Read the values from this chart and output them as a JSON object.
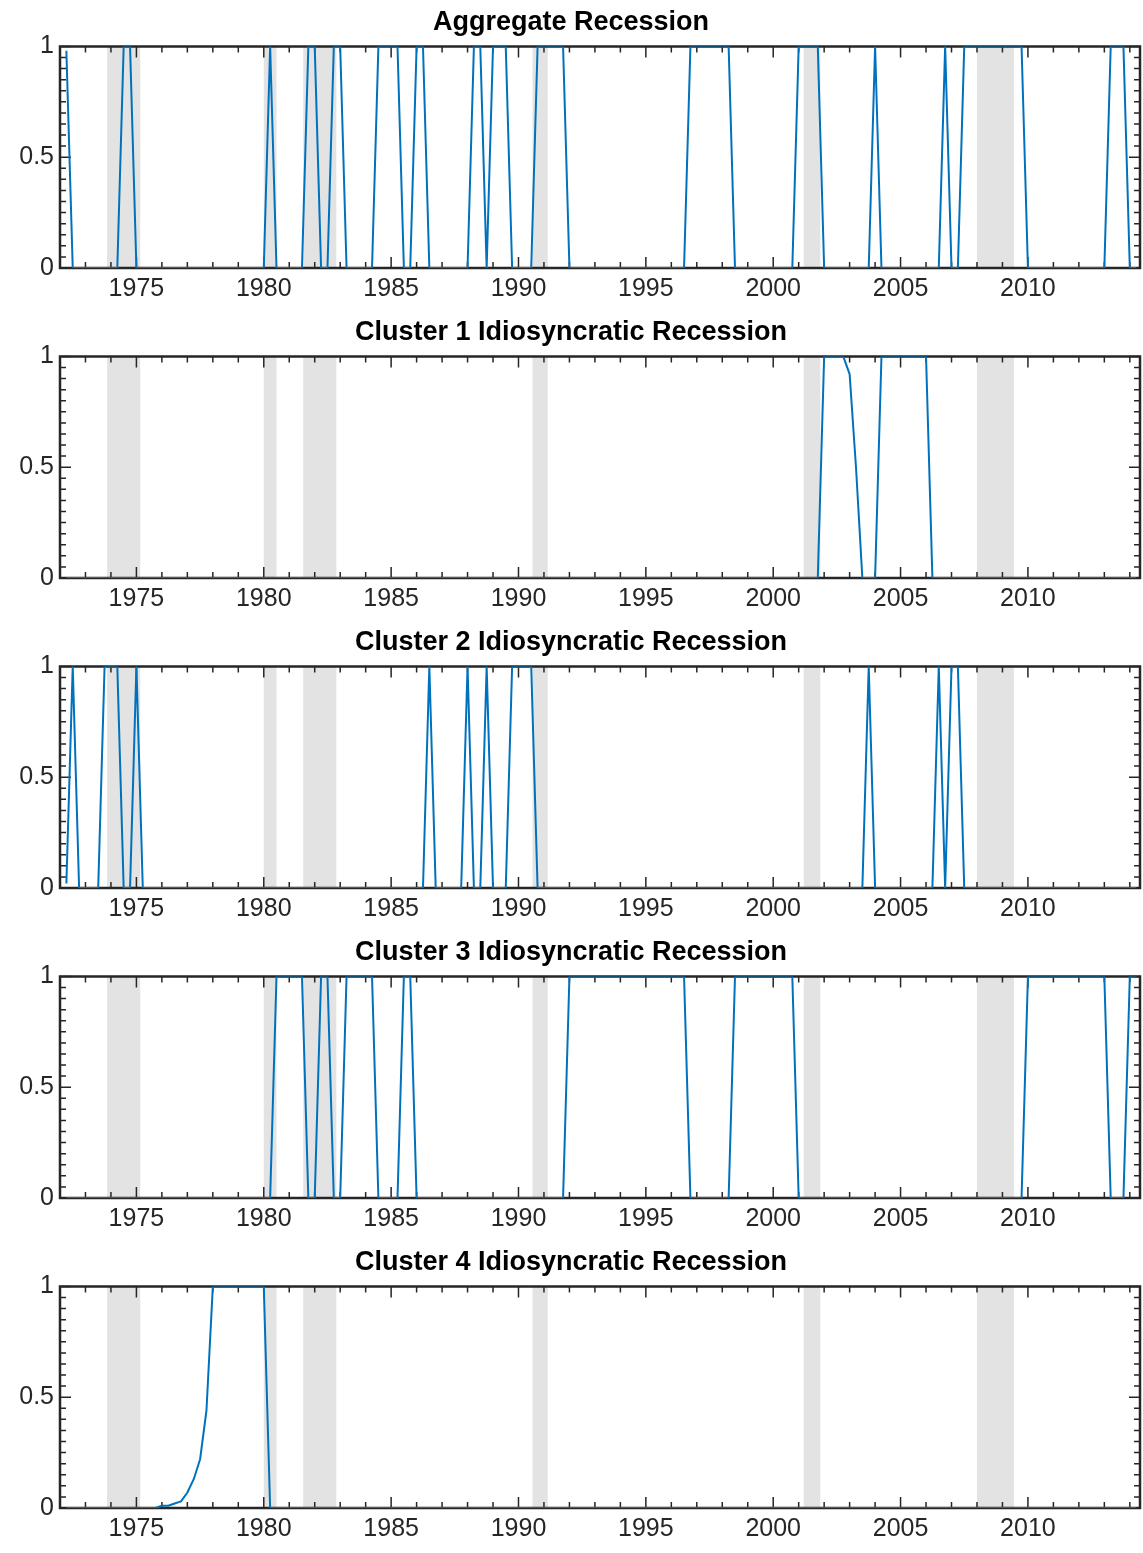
{
  "chart_data": [
    {
      "type": "line",
      "title": "Aggregate Recession",
      "marker": "none",
      "xlim": [
        1972,
        2014.4
      ],
      "ylim": [
        0,
        1
      ],
      "xticks": [
        {
          "value": 1972,
          "label": null
        },
        {
          "value": 1973,
          "label": null
        },
        {
          "value": 1974,
          "label": null
        },
        1975,
        {
          "value": 1976,
          "label": null
        },
        {
          "value": 1977,
          "label": null
        },
        {
          "value": 1978,
          "label": null
        },
        {
          "value": 1979,
          "label": null
        },
        1980,
        {
          "value": 1981,
          "label": null
        },
        {
          "value": 1982,
          "label": null
        },
        {
          "value": 1983,
          "label": null
        },
        {
          "value": 1984,
          "label": null
        },
        1985,
        {
          "value": 1986,
          "label": null
        },
        {
          "value": 1987,
          "label": null
        },
        {
          "value": 1988,
          "label": null
        },
        {
          "value": 1989,
          "label": null
        },
        1990,
        {
          "value": 1991,
          "label": null
        },
        {
          "value": 1992,
          "label": null
        },
        {
          "value": 1993,
          "label": null
        },
        {
          "value": 1994,
          "label": null
        },
        1995,
        {
          "value": 1996,
          "label": null
        },
        {
          "value": 1997,
          "label": null
        },
        {
          "value": 1998,
          "label": null
        },
        {
          "value": 1999,
          "label": null
        },
        2000,
        {
          "value": 2001,
          "label": null
        },
        {
          "value": 2002,
          "label": null
        },
        {
          "value": 2003,
          "label": null
        },
        {
          "value": 2004,
          "label": null
        },
        2005,
        {
          "value": 2006,
          "label": null
        },
        {
          "value": 2007,
          "label": null
        },
        {
          "value": 2008,
          "label": null
        },
        {
          "value": 2009,
          "label": null
        },
        2010,
        {
          "value": 2011,
          "label": null
        },
        {
          "value": 2012,
          "label": null
        },
        {
          "value": 2013,
          "label": null
        },
        {
          "value": 2014,
          "label": null
        }
      ],
      "yticks": [
        0,
        {
          "value": 0.05,
          "label": null
        },
        {
          "value": 0.1,
          "label": null
        },
        {
          "value": 0.15,
          "label": null
        },
        {
          "value": 0.2,
          "label": null
        },
        {
          "value": 0.25,
          "label": null
        },
        {
          "value": 0.3,
          "label": null
        },
        {
          "value": 0.35,
          "label": null
        },
        {
          "value": 0.4,
          "label": null
        },
        {
          "value": 0.45,
          "label": null
        },
        0.5,
        {
          "value": 0.55,
          "label": null
        },
        {
          "value": 0.6,
          "label": null
        },
        {
          "value": 0.65,
          "label": null
        },
        {
          "value": 0.7,
          "label": null
        },
        {
          "value": 0.75,
          "label": null
        },
        {
          "value": 0.8,
          "label": null
        },
        {
          "value": 0.85,
          "label": null
        },
        {
          "value": 0.9,
          "label": null
        },
        {
          "value": 0.95,
          "label": null
        },
        1
      ],
      "bands": [
        {
          "axis": "x",
          "from": 1973.85,
          "to": 1975.15,
          "color": "#e3e3e3"
        },
        {
          "axis": "x",
          "from": 1980.0,
          "to": 1980.5,
          "color": "#e3e3e3"
        },
        {
          "axis": "x",
          "from": 1981.55,
          "to": 1982.85,
          "color": "#e3e3e3"
        },
        {
          "axis": "x",
          "from": 1990.55,
          "to": 1991.15,
          "color": "#e3e3e3"
        },
        {
          "axis": "x",
          "from": 2001.2,
          "to": 2001.85,
          "color": "#e3e3e3"
        },
        {
          "axis": "x",
          "from": 2008.0,
          "to": 2009.45,
          "color": "#e3e3e3"
        }
      ],
      "series": [
        {
          "color": "#0072bd",
          "x": [
            1972.25,
            1972.5,
            1974.25,
            1974.5,
            1974.75,
            1975.0,
            1980.0,
            1980.25,
            1980.5,
            1981.5,
            1981.75,
            1982.0,
            1982.25,
            1982.5,
            1982.75,
            1983.0,
            1983.25,
            1984.25,
            1984.5,
            1985.25,
            1985.5,
            1985.75,
            1986.0,
            1986.25,
            1986.5,
            1988.0,
            1988.25,
            1988.5,
            1988.75,
            1989.0,
            1989.5,
            1989.75,
            1990.5,
            1990.75,
            1991.75,
            1992.0,
            1996.5,
            1996.75,
            1998.25,
            1998.5,
            2000.75,
            2001.0,
            2001.75,
            2002.0,
            2003.75,
            2004.0,
            2004.25,
            2006.5,
            2006.75,
            2007.0,
            2007.25,
            2007.5,
            2009.75,
            2010.0,
            2013.0,
            2013.25,
            2013.75,
            2014.0,
            2014.25
          ],
          "values": [
            0.98,
            0,
            0,
            1,
            1,
            0,
            0,
            1,
            0,
            0,
            1,
            1,
            0,
            0,
            1,
            1,
            0,
            0,
            1,
            1,
            0,
            0,
            1,
            1,
            0,
            0,
            1,
            1,
            0,
            1,
            1,
            0,
            0,
            1,
            1,
            0,
            0,
            1,
            1,
            0,
            0,
            1,
            1,
            0,
            0,
            1,
            0,
            0,
            1,
            0,
            0,
            1,
            1,
            0,
            0,
            1,
            1,
            0,
            0
          ]
        }
      ]
    },
    {
      "type": "line",
      "title": "Cluster 1 Idiosyncratic Recession",
      "marker": "none",
      "xlim": [
        1972,
        2014.4
      ],
      "ylim": [
        0,
        1
      ],
      "xticks": [
        {
          "value": 1972,
          "label": null
        },
        {
          "value": 1973,
          "label": null
        },
        {
          "value": 1974,
          "label": null
        },
        1975,
        {
          "value": 1976,
          "label": null
        },
        {
          "value": 1977,
          "label": null
        },
        {
          "value": 1978,
          "label": null
        },
        {
          "value": 1979,
          "label": null
        },
        1980,
        {
          "value": 1981,
          "label": null
        },
        {
          "value": 1982,
          "label": null
        },
        {
          "value": 1983,
          "label": null
        },
        {
          "value": 1984,
          "label": null
        },
        1985,
        {
          "value": 1986,
          "label": null
        },
        {
          "value": 1987,
          "label": null
        },
        {
          "value": 1988,
          "label": null
        },
        {
          "value": 1989,
          "label": null
        },
        1990,
        {
          "value": 1991,
          "label": null
        },
        {
          "value": 1992,
          "label": null
        },
        {
          "value": 1993,
          "label": null
        },
        {
          "value": 1994,
          "label": null
        },
        1995,
        {
          "value": 1996,
          "label": null
        },
        {
          "value": 1997,
          "label": null
        },
        {
          "value": 1998,
          "label": null
        },
        {
          "value": 1999,
          "label": null
        },
        2000,
        {
          "value": 2001,
          "label": null
        },
        {
          "value": 2002,
          "label": null
        },
        {
          "value": 2003,
          "label": null
        },
        {
          "value": 2004,
          "label": null
        },
        2005,
        {
          "value": 2006,
          "label": null
        },
        {
          "value": 2007,
          "label": null
        },
        {
          "value": 2008,
          "label": null
        },
        {
          "value": 2009,
          "label": null
        },
        2010,
        {
          "value": 2011,
          "label": null
        },
        {
          "value": 2012,
          "label": null
        },
        {
          "value": 2013,
          "label": null
        },
        {
          "value": 2014,
          "label": null
        }
      ],
      "yticks": [
        0,
        {
          "value": 0.05,
          "label": null
        },
        {
          "value": 0.1,
          "label": null
        },
        {
          "value": 0.15,
          "label": null
        },
        {
          "value": 0.2,
          "label": null
        },
        {
          "value": 0.25,
          "label": null
        },
        {
          "value": 0.3,
          "label": null
        },
        {
          "value": 0.35,
          "label": null
        },
        {
          "value": 0.4,
          "label": null
        },
        {
          "value": 0.45,
          "label": null
        },
        0.5,
        {
          "value": 0.55,
          "label": null
        },
        {
          "value": 0.6,
          "label": null
        },
        {
          "value": 0.65,
          "label": null
        },
        {
          "value": 0.7,
          "label": null
        },
        {
          "value": 0.75,
          "label": null
        },
        {
          "value": 0.8,
          "label": null
        },
        {
          "value": 0.85,
          "label": null
        },
        {
          "value": 0.9,
          "label": null
        },
        {
          "value": 0.95,
          "label": null
        },
        1
      ],
      "bands": [
        {
          "axis": "x",
          "from": 1973.85,
          "to": 1975.15,
          "color": "#e3e3e3"
        },
        {
          "axis": "x",
          "from": 1980.0,
          "to": 1980.5,
          "color": "#e3e3e3"
        },
        {
          "axis": "x",
          "from": 1981.55,
          "to": 1982.85,
          "color": "#e3e3e3"
        },
        {
          "axis": "x",
          "from": 1990.55,
          "to": 1991.15,
          "color": "#e3e3e3"
        },
        {
          "axis": "x",
          "from": 2001.2,
          "to": 2001.85,
          "color": "#e3e3e3"
        },
        {
          "axis": "x",
          "from": 2008.0,
          "to": 2009.45,
          "color": "#e3e3e3"
        }
      ],
      "series": [
        {
          "color": "#0072bd",
          "x": [
            1972.25,
            2001.75,
            2002.0,
            2002.75,
            2003.0,
            2003.25,
            2003.5,
            2004.0,
            2004.25,
            2006.0,
            2006.25,
            2014.25
          ],
          "values": [
            0,
            0,
            1,
            1,
            0.92,
            0.5,
            0,
            0,
            1,
            1,
            0,
            0
          ]
        }
      ]
    },
    {
      "type": "line",
      "title": "Cluster 2 Idiosyncratic Recession",
      "marker": "none",
      "xlim": [
        1972,
        2014.4
      ],
      "ylim": [
        0,
        1
      ],
      "xticks": [
        {
          "value": 1972,
          "label": null
        },
        {
          "value": 1973,
          "label": null
        },
        {
          "value": 1974,
          "label": null
        },
        1975,
        {
          "value": 1976,
          "label": null
        },
        {
          "value": 1977,
          "label": null
        },
        {
          "value": 1978,
          "label": null
        },
        {
          "value": 1979,
          "label": null
        },
        1980,
        {
          "value": 1981,
          "label": null
        },
        {
          "value": 1982,
          "label": null
        },
        {
          "value": 1983,
          "label": null
        },
        {
          "value": 1984,
          "label": null
        },
        1985,
        {
          "value": 1986,
          "label": null
        },
        {
          "value": 1987,
          "label": null
        },
        {
          "value": 1988,
          "label": null
        },
        {
          "value": 1989,
          "label": null
        },
        1990,
        {
          "value": 1991,
          "label": null
        },
        {
          "value": 1992,
          "label": null
        },
        {
          "value": 1993,
          "label": null
        },
        {
          "value": 1994,
          "label": null
        },
        1995,
        {
          "value": 1996,
          "label": null
        },
        {
          "value": 1997,
          "label": null
        },
        {
          "value": 1998,
          "label": null
        },
        {
          "value": 1999,
          "label": null
        },
        2000,
        {
          "value": 2001,
          "label": null
        },
        {
          "value": 2002,
          "label": null
        },
        {
          "value": 2003,
          "label": null
        },
        {
          "value": 2004,
          "label": null
        },
        2005,
        {
          "value": 2006,
          "label": null
        },
        {
          "value": 2007,
          "label": null
        },
        {
          "value": 2008,
          "label": null
        },
        {
          "value": 2009,
          "label": null
        },
        2010,
        {
          "value": 2011,
          "label": null
        },
        {
          "value": 2012,
          "label": null
        },
        {
          "value": 2013,
          "label": null
        },
        {
          "value": 2014,
          "label": null
        }
      ],
      "yticks": [
        0,
        {
          "value": 0.05,
          "label": null
        },
        {
          "value": 0.1,
          "label": null
        },
        {
          "value": 0.15,
          "label": null
        },
        {
          "value": 0.2,
          "label": null
        },
        {
          "value": 0.25,
          "label": null
        },
        {
          "value": 0.3,
          "label": null
        },
        {
          "value": 0.35,
          "label": null
        },
        {
          "value": 0.4,
          "label": null
        },
        {
          "value": 0.45,
          "label": null
        },
        0.5,
        {
          "value": 0.55,
          "label": null
        },
        {
          "value": 0.6,
          "label": null
        },
        {
          "value": 0.65,
          "label": null
        },
        {
          "value": 0.7,
          "label": null
        },
        {
          "value": 0.75,
          "label": null
        },
        {
          "value": 0.8,
          "label": null
        },
        {
          "value": 0.85,
          "label": null
        },
        {
          "value": 0.9,
          "label": null
        },
        {
          "value": 0.95,
          "label": null
        },
        1
      ],
      "bands": [
        {
          "axis": "x",
          "from": 1973.85,
          "to": 1975.15,
          "color": "#e3e3e3"
        },
        {
          "axis": "x",
          "from": 1980.0,
          "to": 1980.5,
          "color": "#e3e3e3"
        },
        {
          "axis": "x",
          "from": 1981.55,
          "to": 1982.85,
          "color": "#e3e3e3"
        },
        {
          "axis": "x",
          "from": 1990.55,
          "to": 1991.15,
          "color": "#e3e3e3"
        },
        {
          "axis": "x",
          "from": 2001.2,
          "to": 2001.85,
          "color": "#e3e3e3"
        },
        {
          "axis": "x",
          "from": 2008.0,
          "to": 2009.45,
          "color": "#e3e3e3"
        }
      ],
      "series": [
        {
          "color": "#0072bd",
          "x": [
            1972.25,
            1972.5,
            1972.75,
            1973.5,
            1973.75,
            1974.25,
            1974.5,
            1974.75,
            1975.0,
            1975.25,
            1986.25,
            1986.5,
            1986.75,
            1987.75,
            1988.0,
            1988.25,
            1988.5,
            1988.75,
            1989.0,
            1989.5,
            1989.75,
            1990.5,
            1990.75,
            2003.5,
            2003.75,
            2004.0,
            2006.25,
            2006.5,
            2006.75,
            2007.0,
            2007.25,
            2007.5,
            2014.25
          ],
          "values": [
            0.02,
            1,
            0,
            0,
            1,
            1,
            0,
            0,
            1,
            0,
            0,
            1,
            0,
            0,
            1,
            0,
            0,
            1,
            0,
            0,
            1,
            1,
            0,
            0,
            1,
            0,
            0,
            1,
            0,
            1,
            1,
            0,
            0
          ]
        }
      ]
    },
    {
      "type": "line",
      "title": "Cluster 3 Idiosyncratic Recession",
      "marker": "none",
      "xlim": [
        1972,
        2014.4
      ],
      "ylim": [
        0,
        1
      ],
      "xticks": [
        {
          "value": 1972,
          "label": null
        },
        {
          "value": 1973,
          "label": null
        },
        {
          "value": 1974,
          "label": null
        },
        1975,
        {
          "value": 1976,
          "label": null
        },
        {
          "value": 1977,
          "label": null
        },
        {
          "value": 1978,
          "label": null
        },
        {
          "value": 1979,
          "label": null
        },
        1980,
        {
          "value": 1981,
          "label": null
        },
        {
          "value": 1982,
          "label": null
        },
        {
          "value": 1983,
          "label": null
        },
        {
          "value": 1984,
          "label": null
        },
        1985,
        {
          "value": 1986,
          "label": null
        },
        {
          "value": 1987,
          "label": null
        },
        {
          "value": 1988,
          "label": null
        },
        {
          "value": 1989,
          "label": null
        },
        1990,
        {
          "value": 1991,
          "label": null
        },
        {
          "value": 1992,
          "label": null
        },
        {
          "value": 1993,
          "label": null
        },
        {
          "value": 1994,
          "label": null
        },
        1995,
        {
          "value": 1996,
          "label": null
        },
        {
          "value": 1997,
          "label": null
        },
        {
          "value": 1998,
          "label": null
        },
        {
          "value": 1999,
          "label": null
        },
        2000,
        {
          "value": 2001,
          "label": null
        },
        {
          "value": 2002,
          "label": null
        },
        {
          "value": 2003,
          "label": null
        },
        {
          "value": 2004,
          "label": null
        },
        2005,
        {
          "value": 2006,
          "label": null
        },
        {
          "value": 2007,
          "label": null
        },
        {
          "value": 2008,
          "label": null
        },
        {
          "value": 2009,
          "label": null
        },
        2010,
        {
          "value": 2011,
          "label": null
        },
        {
          "value": 2012,
          "label": null
        },
        {
          "value": 2013,
          "label": null
        },
        {
          "value": 2014,
          "label": null
        }
      ],
      "yticks": [
        0,
        {
          "value": 0.05,
          "label": null
        },
        {
          "value": 0.1,
          "label": null
        },
        {
          "value": 0.15,
          "label": null
        },
        {
          "value": 0.2,
          "label": null
        },
        {
          "value": 0.25,
          "label": null
        },
        {
          "value": 0.3,
          "label": null
        },
        {
          "value": 0.35,
          "label": null
        },
        {
          "value": 0.4,
          "label": null
        },
        {
          "value": 0.45,
          "label": null
        },
        0.5,
        {
          "value": 0.55,
          "label": null
        },
        {
          "value": 0.6,
          "label": null
        },
        {
          "value": 0.65,
          "label": null
        },
        {
          "value": 0.7,
          "label": null
        },
        {
          "value": 0.75,
          "label": null
        },
        {
          "value": 0.8,
          "label": null
        },
        {
          "value": 0.85,
          "label": null
        },
        {
          "value": 0.9,
          "label": null
        },
        {
          "value": 0.95,
          "label": null
        },
        1
      ],
      "bands": [
        {
          "axis": "x",
          "from": 1973.85,
          "to": 1975.15,
          "color": "#e3e3e3"
        },
        {
          "axis": "x",
          "from": 1980.0,
          "to": 1980.5,
          "color": "#e3e3e3"
        },
        {
          "axis": "x",
          "from": 1981.55,
          "to": 1982.85,
          "color": "#e3e3e3"
        },
        {
          "axis": "x",
          "from": 1990.55,
          "to": 1991.15,
          "color": "#e3e3e3"
        },
        {
          "axis": "x",
          "from": 2001.2,
          "to": 2001.85,
          "color": "#e3e3e3"
        },
        {
          "axis": "x",
          "from": 2008.0,
          "to": 2009.45,
          "color": "#e3e3e3"
        }
      ],
      "series": [
        {
          "color": "#0072bd",
          "x": [
            1972.25,
            1980.25,
            1980.5,
            1981.5,
            1981.75,
            1982.0,
            1982.25,
            1982.5,
            1982.75,
            1983.0,
            1983.25,
            1984.25,
            1984.5,
            1985.25,
            1985.5,
            1985.75,
            1986.0,
            1991.75,
            1992.0,
            1996.5,
            1996.75,
            1998.25,
            1998.5,
            2000.75,
            2001.0,
            2009.75,
            2010.0,
            2013.0,
            2013.25,
            2013.75,
            2014.0,
            2014.25
          ],
          "values": [
            0,
            0,
            1,
            1,
            0,
            0,
            1,
            1,
            0,
            0,
            1,
            1,
            0,
            0,
            1,
            1,
            0,
            0,
            1,
            1,
            0,
            0,
            1,
            1,
            0,
            0,
            1,
            1,
            0,
            0,
            1,
            1
          ]
        }
      ]
    },
    {
      "type": "line",
      "title": "Cluster 4 Idiosyncratic Recession",
      "marker": "none",
      "xlim": [
        1972,
        2014.4
      ],
      "ylim": [
        0,
        1
      ],
      "xticks": [
        {
          "value": 1972,
          "label": null
        },
        {
          "value": 1973,
          "label": null
        },
        {
          "value": 1974,
          "label": null
        },
        1975,
        {
          "value": 1976,
          "label": null
        },
        {
          "value": 1977,
          "label": null
        },
        {
          "value": 1978,
          "label": null
        },
        {
          "value": 1979,
          "label": null
        },
        1980,
        {
          "value": 1981,
          "label": null
        },
        {
          "value": 1982,
          "label": null
        },
        {
          "value": 1983,
          "label": null
        },
        {
          "value": 1984,
          "label": null
        },
        1985,
        {
          "value": 1986,
          "label": null
        },
        {
          "value": 1987,
          "label": null
        },
        {
          "value": 1988,
          "label": null
        },
        {
          "value": 1989,
          "label": null
        },
        1990,
        {
          "value": 1991,
          "label": null
        },
        {
          "value": 1992,
          "label": null
        },
        {
          "value": 1993,
          "label": null
        },
        {
          "value": 1994,
          "label": null
        },
        1995,
        {
          "value": 1996,
          "label": null
        },
        {
          "value": 1997,
          "label": null
        },
        {
          "value": 1998,
          "label": null
        },
        {
          "value": 1999,
          "label": null
        },
        2000,
        {
          "value": 2001,
          "label": null
        },
        {
          "value": 2002,
          "label": null
        },
        {
          "value": 2003,
          "label": null
        },
        {
          "value": 2004,
          "label": null
        },
        2005,
        {
          "value": 2006,
          "label": null
        },
        {
          "value": 2007,
          "label": null
        },
        {
          "value": 2008,
          "label": null
        },
        {
          "value": 2009,
          "label": null
        },
        2010,
        {
          "value": 2011,
          "label": null
        },
        {
          "value": 2012,
          "label": null
        },
        {
          "value": 2013,
          "label": null
        },
        {
          "value": 2014,
          "label": null
        }
      ],
      "yticks": [
        0,
        {
          "value": 0.05,
          "label": null
        },
        {
          "value": 0.1,
          "label": null
        },
        {
          "value": 0.15,
          "label": null
        },
        {
          "value": 0.2,
          "label": null
        },
        {
          "value": 0.25,
          "label": null
        },
        {
          "value": 0.3,
          "label": null
        },
        {
          "value": 0.35,
          "label": null
        },
        {
          "value": 0.4,
          "label": null
        },
        {
          "value": 0.45,
          "label": null
        },
        0.5,
        {
          "value": 0.55,
          "label": null
        },
        {
          "value": 0.6,
          "label": null
        },
        {
          "value": 0.65,
          "label": null
        },
        {
          "value": 0.7,
          "label": null
        },
        {
          "value": 0.75,
          "label": null
        },
        {
          "value": 0.8,
          "label": null
        },
        {
          "value": 0.85,
          "label": null
        },
        {
          "value": 0.9,
          "label": null
        },
        {
          "value": 0.95,
          "label": null
        },
        1
      ],
      "bands": [
        {
          "axis": "x",
          "from": 1973.85,
          "to": 1975.15,
          "color": "#e3e3e3"
        },
        {
          "axis": "x",
          "from": 1980.0,
          "to": 1980.5,
          "color": "#e3e3e3"
        },
        {
          "axis": "x",
          "from": 1981.55,
          "to": 1982.85,
          "color": "#e3e3e3"
        },
        {
          "axis": "x",
          "from": 1990.55,
          "to": 1991.15,
          "color": "#e3e3e3"
        },
        {
          "axis": "x",
          "from": 2001.2,
          "to": 2001.85,
          "color": "#e3e3e3"
        },
        {
          "axis": "x",
          "from": 2008.0,
          "to": 2009.45,
          "color": "#e3e3e3"
        }
      ],
      "series": [
        {
          "color": "#0072bd",
          "x": [
            1972.25,
            1975.75,
            1976.0,
            1976.25,
            1976.5,
            1976.75,
            1977.0,
            1977.25,
            1977.5,
            1977.75,
            1978.0,
            1980.0,
            1980.25,
            2014.25
          ],
          "values": [
            0,
            0,
            0.01,
            0.01,
            0.02,
            0.03,
            0.07,
            0.13,
            0.22,
            0.44,
            1,
            1,
            0,
            0
          ]
        }
      ]
    }
  ]
}
